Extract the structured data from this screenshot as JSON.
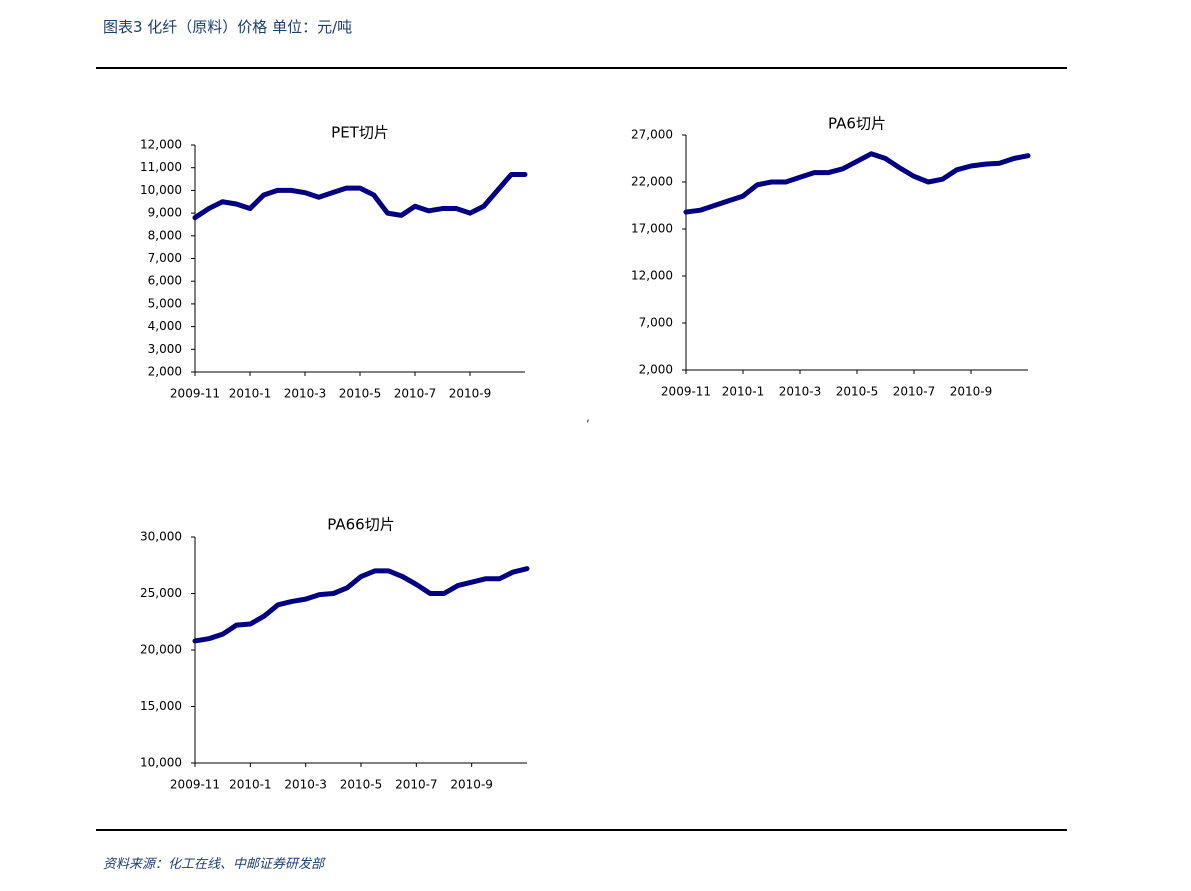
{
  "header": {
    "title": "图表3 化纤（原料）价格 单位：元/吨"
  },
  "note": ",",
  "source": "资料来源：化工在线、中邮证券研发部",
  "chart_data": [
    {
      "type": "line",
      "title": "PET切片",
      "categories": [
        "2009-11",
        null,
        null,
        null,
        "2010-1",
        null,
        null,
        null,
        "2010-3",
        null,
        null,
        null,
        "2010-5",
        null,
        null,
        null,
        "2010-7",
        null,
        null,
        null,
        "2010-9",
        null,
        null,
        null,
        null
      ],
      "series": [
        {
          "name": "PET切片",
          "color": "#000080",
          "values": [
            8800,
            9200,
            9500,
            9400,
            9200,
            9800,
            10000,
            10000,
            9900,
            9700,
            9900,
            10100,
            10100,
            9800,
            9000,
            8900,
            9300,
            9100,
            9200,
            9200,
            9000,
            9300,
            10000,
            10700,
            10700
          ]
        }
      ],
      "ylim": [
        2000,
        12000
      ],
      "yticks": [
        {
          "value": 2000,
          "label": "2,000"
        },
        {
          "value": 3000,
          "label": "3,000"
        },
        {
          "value": 4000,
          "label": "4,000"
        },
        {
          "value": 5000,
          "label": "5,000"
        },
        {
          "value": 6000,
          "label": "6,000"
        },
        {
          "value": 7000,
          "label": "7,000"
        },
        {
          "value": 8000,
          "label": "8,000"
        },
        {
          "value": 9000,
          "label": "9,000"
        },
        {
          "value": 10000,
          "label": "10,000"
        },
        {
          "value": 11000,
          "label": "11,000"
        },
        {
          "value": 12000,
          "label": "12,000"
        }
      ],
      "grid": false
    },
    {
      "type": "line",
      "title": "PA6切片",
      "categories": [
        "2009-11",
        null,
        null,
        null,
        "2010-1",
        null,
        null,
        null,
        "2010-3",
        null,
        null,
        null,
        "2010-5",
        null,
        null,
        null,
        "2010-7",
        null,
        null,
        null,
        "2010-9",
        null,
        null,
        null,
        null
      ],
      "series": [
        {
          "name": "PA6切片",
          "color": "#000080",
          "values": [
            18800,
            19000,
            19500,
            20000,
            20500,
            21700,
            22000,
            22000,
            22500,
            23000,
            23000,
            23400,
            24200,
            25000,
            24500,
            23500,
            22600,
            22000,
            22300,
            23300,
            23700,
            23900,
            24000,
            24500,
            24800
          ]
        }
      ],
      "ylim": [
        2000,
        27000
      ],
      "yticks": [
        {
          "value": 2000,
          "label": "2,000"
        },
        {
          "value": 7000,
          "label": "7,000"
        },
        {
          "value": 12000,
          "label": "12,000"
        },
        {
          "value": 17000,
          "label": "17,000"
        },
        {
          "value": 22000,
          "label": "22,000"
        },
        {
          "value": 27000,
          "label": "27,000"
        }
      ],
      "grid": false
    },
    {
      "type": "line",
      "title": "PA66切片",
      "categories": [
        "2009-11",
        null,
        null,
        null,
        "2010-1",
        null,
        null,
        null,
        "2010-3",
        null,
        null,
        null,
        "2010-5",
        null,
        null,
        null,
        "2010-7",
        null,
        null,
        null,
        "2010-9",
        null,
        null,
        null,
        null
      ],
      "series": [
        {
          "name": "PA66切片",
          "color": "#000080",
          "values": [
            20800,
            21000,
            21400,
            22200,
            22300,
            23000,
            24000,
            24300,
            24500,
            24900,
            25000,
            25500,
            26500,
            27000,
            27000,
            26500,
            25800,
            25000,
            25000,
            25700,
            26000,
            26300,
            26300,
            26900,
            27200
          ]
        }
      ],
      "ylim": [
        10000,
        30000
      ],
      "yticks": [
        {
          "value": 10000,
          "label": "10,000"
        },
        {
          "value": 15000,
          "label": "15,000"
        },
        {
          "value": 20000,
          "label": "20,000"
        },
        {
          "value": 25000,
          "label": "25,000"
        },
        {
          "value": 30000,
          "label": "30,000"
        }
      ],
      "grid": false
    }
  ]
}
